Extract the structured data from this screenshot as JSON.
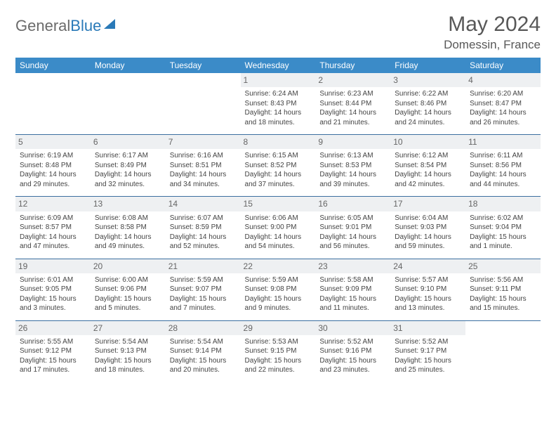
{
  "brand": {
    "part1": "General",
    "part2": "Blue"
  },
  "title": "May 2024",
  "location": "Domessin, France",
  "colors": {
    "header_bg": "#3b8bc8",
    "header_text": "#ffffff",
    "daynum_bg": "#eef0f2",
    "border": "#3b6fa0",
    "brand_gray": "#6b6b6b",
    "brand_blue": "#2a7ab8"
  },
  "weekdays": [
    "Sunday",
    "Monday",
    "Tuesday",
    "Wednesday",
    "Thursday",
    "Friday",
    "Saturday"
  ],
  "weeks": [
    [
      {
        "n": "",
        "sr": "",
        "ss": "",
        "dl": ""
      },
      {
        "n": "",
        "sr": "",
        "ss": "",
        "dl": ""
      },
      {
        "n": "",
        "sr": "",
        "ss": "",
        "dl": ""
      },
      {
        "n": "1",
        "sr": "Sunrise: 6:24 AM",
        "ss": "Sunset: 8:43 PM",
        "dl": "Daylight: 14 hours and 18 minutes."
      },
      {
        "n": "2",
        "sr": "Sunrise: 6:23 AM",
        "ss": "Sunset: 8:44 PM",
        "dl": "Daylight: 14 hours and 21 minutes."
      },
      {
        "n": "3",
        "sr": "Sunrise: 6:22 AM",
        "ss": "Sunset: 8:46 PM",
        "dl": "Daylight: 14 hours and 24 minutes."
      },
      {
        "n": "4",
        "sr": "Sunrise: 6:20 AM",
        "ss": "Sunset: 8:47 PM",
        "dl": "Daylight: 14 hours and 26 minutes."
      }
    ],
    [
      {
        "n": "5",
        "sr": "Sunrise: 6:19 AM",
        "ss": "Sunset: 8:48 PM",
        "dl": "Daylight: 14 hours and 29 minutes."
      },
      {
        "n": "6",
        "sr": "Sunrise: 6:17 AM",
        "ss": "Sunset: 8:49 PM",
        "dl": "Daylight: 14 hours and 32 minutes."
      },
      {
        "n": "7",
        "sr": "Sunrise: 6:16 AM",
        "ss": "Sunset: 8:51 PM",
        "dl": "Daylight: 14 hours and 34 minutes."
      },
      {
        "n": "8",
        "sr": "Sunrise: 6:15 AM",
        "ss": "Sunset: 8:52 PM",
        "dl": "Daylight: 14 hours and 37 minutes."
      },
      {
        "n": "9",
        "sr": "Sunrise: 6:13 AM",
        "ss": "Sunset: 8:53 PM",
        "dl": "Daylight: 14 hours and 39 minutes."
      },
      {
        "n": "10",
        "sr": "Sunrise: 6:12 AM",
        "ss": "Sunset: 8:54 PM",
        "dl": "Daylight: 14 hours and 42 minutes."
      },
      {
        "n": "11",
        "sr": "Sunrise: 6:11 AM",
        "ss": "Sunset: 8:56 PM",
        "dl": "Daylight: 14 hours and 44 minutes."
      }
    ],
    [
      {
        "n": "12",
        "sr": "Sunrise: 6:09 AM",
        "ss": "Sunset: 8:57 PM",
        "dl": "Daylight: 14 hours and 47 minutes."
      },
      {
        "n": "13",
        "sr": "Sunrise: 6:08 AM",
        "ss": "Sunset: 8:58 PM",
        "dl": "Daylight: 14 hours and 49 minutes."
      },
      {
        "n": "14",
        "sr": "Sunrise: 6:07 AM",
        "ss": "Sunset: 8:59 PM",
        "dl": "Daylight: 14 hours and 52 minutes."
      },
      {
        "n": "15",
        "sr": "Sunrise: 6:06 AM",
        "ss": "Sunset: 9:00 PM",
        "dl": "Daylight: 14 hours and 54 minutes."
      },
      {
        "n": "16",
        "sr": "Sunrise: 6:05 AM",
        "ss": "Sunset: 9:01 PM",
        "dl": "Daylight: 14 hours and 56 minutes."
      },
      {
        "n": "17",
        "sr": "Sunrise: 6:04 AM",
        "ss": "Sunset: 9:03 PM",
        "dl": "Daylight: 14 hours and 59 minutes."
      },
      {
        "n": "18",
        "sr": "Sunrise: 6:02 AM",
        "ss": "Sunset: 9:04 PM",
        "dl": "Daylight: 15 hours and 1 minute."
      }
    ],
    [
      {
        "n": "19",
        "sr": "Sunrise: 6:01 AM",
        "ss": "Sunset: 9:05 PM",
        "dl": "Daylight: 15 hours and 3 minutes."
      },
      {
        "n": "20",
        "sr": "Sunrise: 6:00 AM",
        "ss": "Sunset: 9:06 PM",
        "dl": "Daylight: 15 hours and 5 minutes."
      },
      {
        "n": "21",
        "sr": "Sunrise: 5:59 AM",
        "ss": "Sunset: 9:07 PM",
        "dl": "Daylight: 15 hours and 7 minutes."
      },
      {
        "n": "22",
        "sr": "Sunrise: 5:59 AM",
        "ss": "Sunset: 9:08 PM",
        "dl": "Daylight: 15 hours and 9 minutes."
      },
      {
        "n": "23",
        "sr": "Sunrise: 5:58 AM",
        "ss": "Sunset: 9:09 PM",
        "dl": "Daylight: 15 hours and 11 minutes."
      },
      {
        "n": "24",
        "sr": "Sunrise: 5:57 AM",
        "ss": "Sunset: 9:10 PM",
        "dl": "Daylight: 15 hours and 13 minutes."
      },
      {
        "n": "25",
        "sr": "Sunrise: 5:56 AM",
        "ss": "Sunset: 9:11 PM",
        "dl": "Daylight: 15 hours and 15 minutes."
      }
    ],
    [
      {
        "n": "26",
        "sr": "Sunrise: 5:55 AM",
        "ss": "Sunset: 9:12 PM",
        "dl": "Daylight: 15 hours and 17 minutes."
      },
      {
        "n": "27",
        "sr": "Sunrise: 5:54 AM",
        "ss": "Sunset: 9:13 PM",
        "dl": "Daylight: 15 hours and 18 minutes."
      },
      {
        "n": "28",
        "sr": "Sunrise: 5:54 AM",
        "ss": "Sunset: 9:14 PM",
        "dl": "Daylight: 15 hours and 20 minutes."
      },
      {
        "n": "29",
        "sr": "Sunrise: 5:53 AM",
        "ss": "Sunset: 9:15 PM",
        "dl": "Daylight: 15 hours and 22 minutes."
      },
      {
        "n": "30",
        "sr": "Sunrise: 5:52 AM",
        "ss": "Sunset: 9:16 PM",
        "dl": "Daylight: 15 hours and 23 minutes."
      },
      {
        "n": "31",
        "sr": "Sunrise: 5:52 AM",
        "ss": "Sunset: 9:17 PM",
        "dl": "Daylight: 15 hours and 25 minutes."
      },
      {
        "n": "",
        "sr": "",
        "ss": "",
        "dl": ""
      }
    ]
  ]
}
